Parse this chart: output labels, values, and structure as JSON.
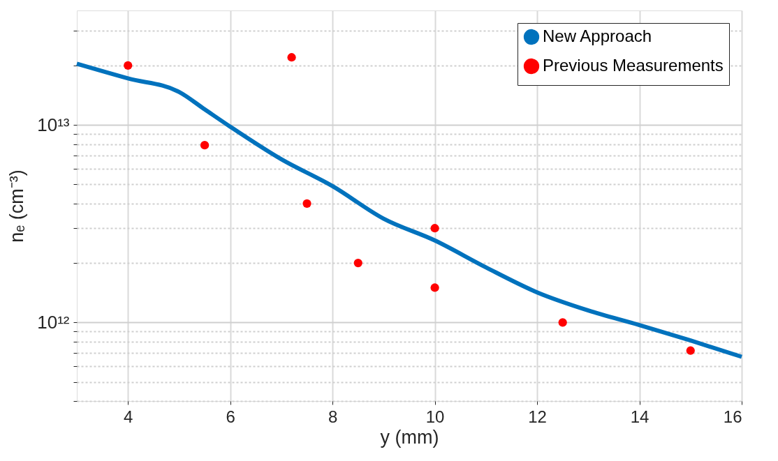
{
  "chart_data": {
    "type": "line",
    "xlabel": "y (mm)",
    "ylabel": "nₑ (cm⁻³)",
    "log": "y",
    "grid": true,
    "legend": "top right",
    "xlim": [
      3,
      16
    ],
    "xticks": [
      4,
      6,
      8,
      10,
      12,
      14,
      16
    ],
    "ylim": [
      400000000000.0,
      38000000000000.0
    ],
    "yticks": [
      {
        "value": 400000000000.0,
        "label": null
      },
      {
        "value": 500000000000.0,
        "label": null
      },
      {
        "value": 600000000000.0,
        "label": null
      },
      {
        "value": 700000000000.0,
        "label": null
      },
      {
        "value": 800000000000.0,
        "label": null
      },
      {
        "value": 900000000000.0,
        "label": null
      },
      {
        "value": 1000000000000.0,
        "label": "10¹²"
      },
      {
        "value": 2000000000000.0,
        "label": null
      },
      {
        "value": 3000000000000.0,
        "label": null
      },
      {
        "value": 4000000000000.0,
        "label": null
      },
      {
        "value": 5000000000000.0,
        "label": null
      },
      {
        "value": 6000000000000.0,
        "label": null
      },
      {
        "value": 7000000000000.0,
        "label": null
      },
      {
        "value": 8000000000000.0,
        "label": null
      },
      {
        "value": 9000000000000.0,
        "label": null
      },
      {
        "value": 10000000000000.0,
        "label": "10¹³"
      },
      {
        "value": 20000000000000.0,
        "label": null
      },
      {
        "value": 30000000000000.0,
        "label": null
      }
    ],
    "series": [
      {
        "name": "New Approach",
        "type": "line",
        "color": "#0072bd",
        "marker": "none",
        "line_style": "solid",
        "x": [
          3,
          4,
          5,
          5.5,
          6,
          7,
          8,
          9,
          10,
          11,
          12,
          13,
          14,
          15,
          16
        ],
        "values": [
          20400000000000.0,
          17200000000000.0,
          14700000000000.0,
          12000000000000.0,
          9800000000000.0,
          6700000000000.0,
          4900000000000.0,
          3350000000000.0,
          2600000000000.0,
          1900000000000.0,
          1420000000000.0,
          1150000000000.0,
          970000000000.0,
          810000000000.0,
          670000000000.0
        ]
      },
      {
        "name": "Previous Measurements",
        "type": "scatter",
        "color": "#ff0000",
        "marker": "circle",
        "x": [
          4,
          5.5,
          7.2,
          7.5,
          8.5,
          10,
          10,
          12.5,
          15
        ],
        "values": [
          20000000000000.0,
          7900000000000.0,
          22000000000000.0,
          4000000000000.0,
          2000000000000.0,
          3000000000000.0,
          1500000000000.0,
          1000000000000.0,
          720000000000.0
        ]
      }
    ]
  }
}
